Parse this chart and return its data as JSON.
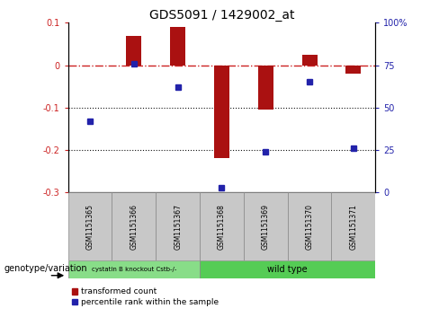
{
  "title": "GDS5091 / 1429002_at",
  "categories": [
    "GSM1151365",
    "GSM1151366",
    "GSM1151367",
    "GSM1151368",
    "GSM1151369",
    "GSM1151370",
    "GSM1151371"
  ],
  "bar_values": [
    0.0,
    0.07,
    0.09,
    -0.22,
    -0.105,
    0.025,
    -0.02
  ],
  "dot_values": [
    42,
    76,
    62,
    3,
    24,
    65,
    26
  ],
  "ylim_left": [
    -0.3,
    0.1
  ],
  "ylim_right": [
    0,
    100
  ],
  "yticks_left": [
    -0.3,
    -0.2,
    -0.1,
    0.0,
    0.1
  ],
  "yticks_right": [
    0,
    25,
    50,
    75,
    100
  ],
  "ytick_labels_right": [
    "0",
    "25",
    "50",
    "75",
    "100%"
  ],
  "bar_color": "#AA1111",
  "dot_color": "#2222AA",
  "hline_color": "#CC2222",
  "dotted_line_color": "#111111",
  "group1_label": "cystatin B knockout Cstb-/-",
  "group2_label": "wild type",
  "group1_color": "#88DD88",
  "group2_color": "#55CC55",
  "group1_count": 3,
  "group2_count": 4,
  "legend_transformed": "transformed count",
  "legend_percentile": "percentile rank within the sample",
  "genotype_label": "genotype/variation",
  "bg_color": "#FFFFFF",
  "plot_bg_color": "#FFFFFF",
  "tick_label_fontsize": 7,
  "title_fontsize": 10,
  "col_bg_color": "#C8C8C8"
}
